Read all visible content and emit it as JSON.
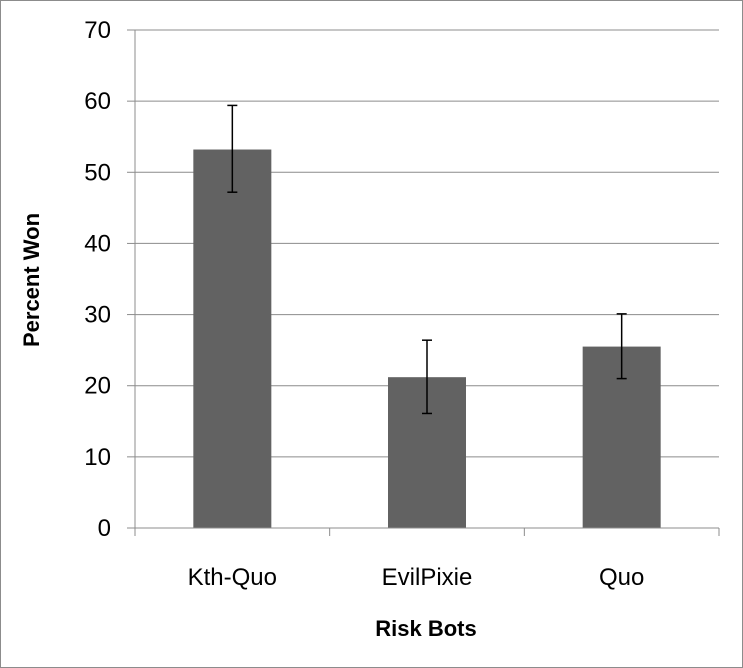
{
  "chart_data": {
    "type": "bar",
    "title": "",
    "xlabel": "Risk Bots",
    "ylabel": "Percent Won",
    "categories": [
      "Kth-Quo",
      "EvilPixie",
      "Quo"
    ],
    "values": [
      53.2,
      21.2,
      25.5
    ],
    "error_bars": [
      {
        "low": 47.2,
        "high": 59.4
      },
      {
        "low": 16.1,
        "high": 26.4
      },
      {
        "low": 21.0,
        "high": 30.1
      }
    ],
    "ylim": [
      0,
      70
    ],
    "yticks": [
      "0",
      "10",
      "20",
      "30",
      "40",
      "50",
      "60",
      "70"
    ],
    "grid": true,
    "legend": "none",
    "colors": {
      "bar": "#626262",
      "grid": "#8c8c8c",
      "axis": "#8c8c8c",
      "error_bar": "#000000"
    }
  }
}
